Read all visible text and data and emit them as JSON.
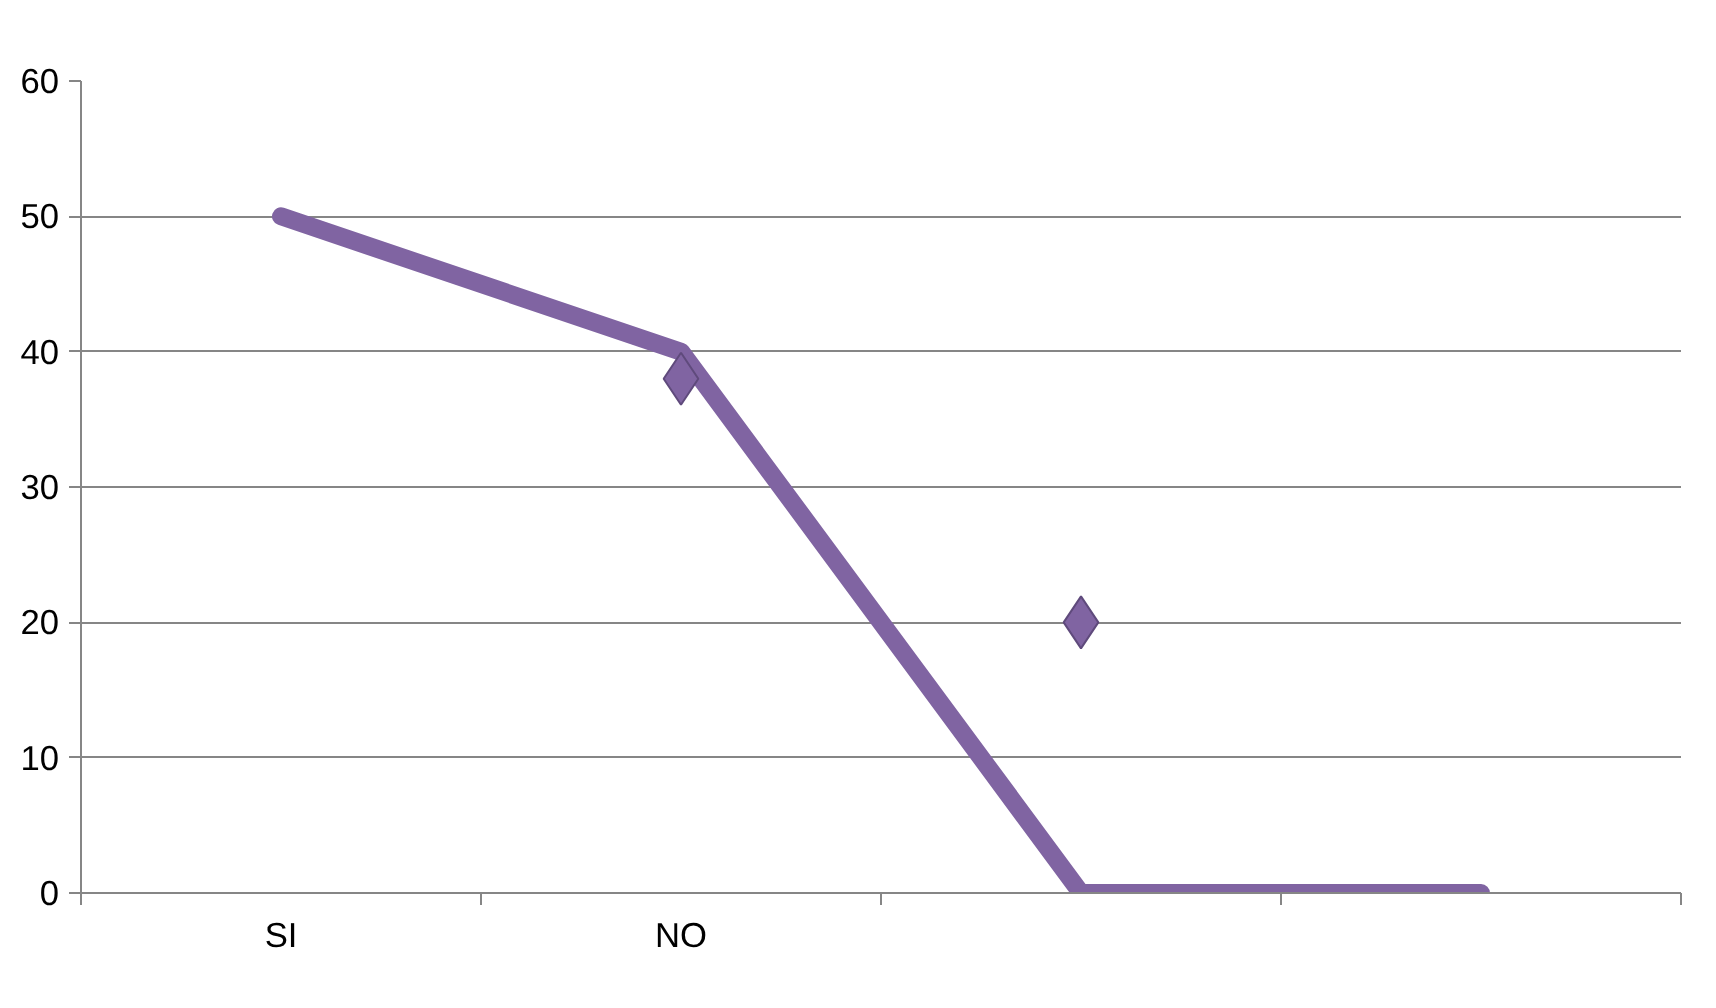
{
  "chart_data": {
    "type": "line",
    "categories": [
      "SI",
      "NO",
      null,
      null
    ],
    "series": [
      {
        "type": "line",
        "color": "#8064a2",
        "values": [
          50,
          40,
          0,
          0
        ]
      },
      {
        "type": "scatter",
        "color": "#8064a2",
        "values": [
          null,
          38,
          20,
          null
        ],
        "marker": "diamond"
      }
    ],
    "ylim": [
      0,
      60
    ],
    "yticks": [
      0,
      10,
      20,
      30,
      40,
      50,
      60
    ],
    "grid": "y"
  }
}
